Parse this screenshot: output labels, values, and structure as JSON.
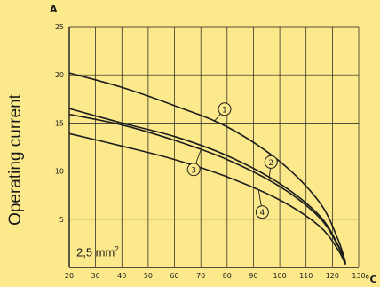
{
  "chart_data": {
    "type": "line",
    "title": "",
    "ylabel": "Operating current",
    "y_unit": "A",
    "x_unit": "°C",
    "annotation_main": "2,5 mm",
    "annotation_sup": "2",
    "xlim": [
      20,
      130
    ],
    "ylim": [
      0,
      25
    ],
    "x_ticks": [
      20,
      30,
      40,
      50,
      60,
      70,
      80,
      90,
      100,
      110,
      120,
      130
    ],
    "y_ticks": [
      5,
      10,
      15,
      20,
      25
    ],
    "grid": true,
    "series": [
      {
        "name": "1",
        "x": [
          20,
          40,
          60,
          80,
          100,
          115,
          122,
          125
        ],
        "y": [
          20.2,
          18.7,
          16.8,
          14.6,
          11.0,
          6.8,
          3.0,
          0.5
        ],
        "marker_at": 75
      },
      {
        "name": "2",
        "x": [
          20,
          40,
          60,
          80,
          100,
          115,
          122,
          125
        ],
        "y": [
          16.5,
          15.0,
          13.6,
          11.6,
          8.7,
          5.4,
          2.4,
          0.4
        ],
        "marker_at": 96
      },
      {
        "name": "3",
        "x": [
          20,
          40,
          60,
          80,
          100,
          115,
          122,
          125
        ],
        "y": [
          15.9,
          14.8,
          13.2,
          11.2,
          8.4,
          5.2,
          2.3,
          0.4
        ],
        "marker_at": 70
      },
      {
        "name": "4",
        "x": [
          20,
          40,
          60,
          80,
          100,
          115,
          122,
          125
        ],
        "y": [
          13.9,
          12.6,
          11.2,
          9.4,
          7.0,
          4.3,
          1.9,
          0.3
        ],
        "marker_at": 92
      }
    ]
  }
}
